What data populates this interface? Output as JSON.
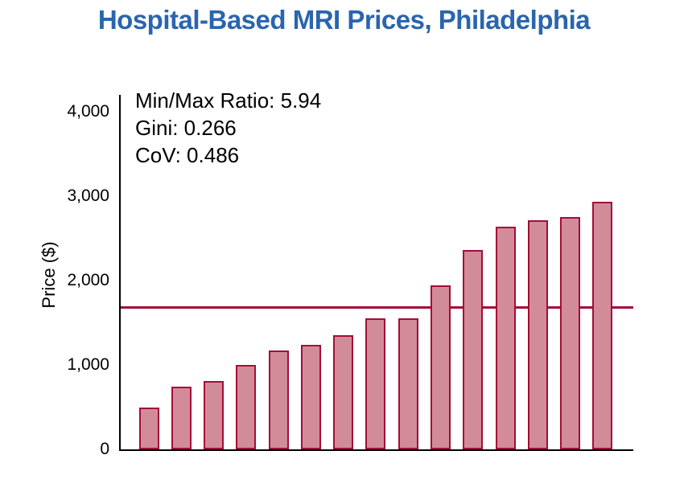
{
  "page": {
    "background": "#ffffff"
  },
  "chart_data": {
    "type": "bar",
    "title": "Hospital-Based MRI Prices, Philadelphia",
    "ylabel": "Price ($)",
    "xlabel": "",
    "x_tick_labels_visible": false,
    "values": [
      493,
      740,
      810,
      1000,
      1170,
      1240,
      1350,
      1550,
      1550,
      1940,
      2360,
      2640,
      2710,
      2750,
      2930
    ],
    "ylim": [
      0,
      4200
    ],
    "yticks": [
      {
        "label": "0",
        "value": 0
      },
      {
        "label": "1,000",
        "value": 1000
      },
      {
        "label": "2,000",
        "value": 2000
      },
      {
        "label": "3,000",
        "value": 3000
      },
      {
        "label": "4,000",
        "value": 4000
      }
    ],
    "reference_line": {
      "value": 1682
    },
    "annotations": [
      "Min/Max Ratio: 5.94",
      "Gini: 0.266",
      "CoV: 0.486"
    ],
    "stats": {
      "min_max_ratio": 5.94,
      "gini": 0.266,
      "cov": 0.486
    },
    "legend": "none",
    "grid": false,
    "colors": {
      "bar_fill": "#d28c99",
      "bar_border": "#a30d38",
      "reference_line": "#a30d38",
      "axis": "#000000",
      "title": "#2a65ad",
      "text": "#000000"
    }
  }
}
